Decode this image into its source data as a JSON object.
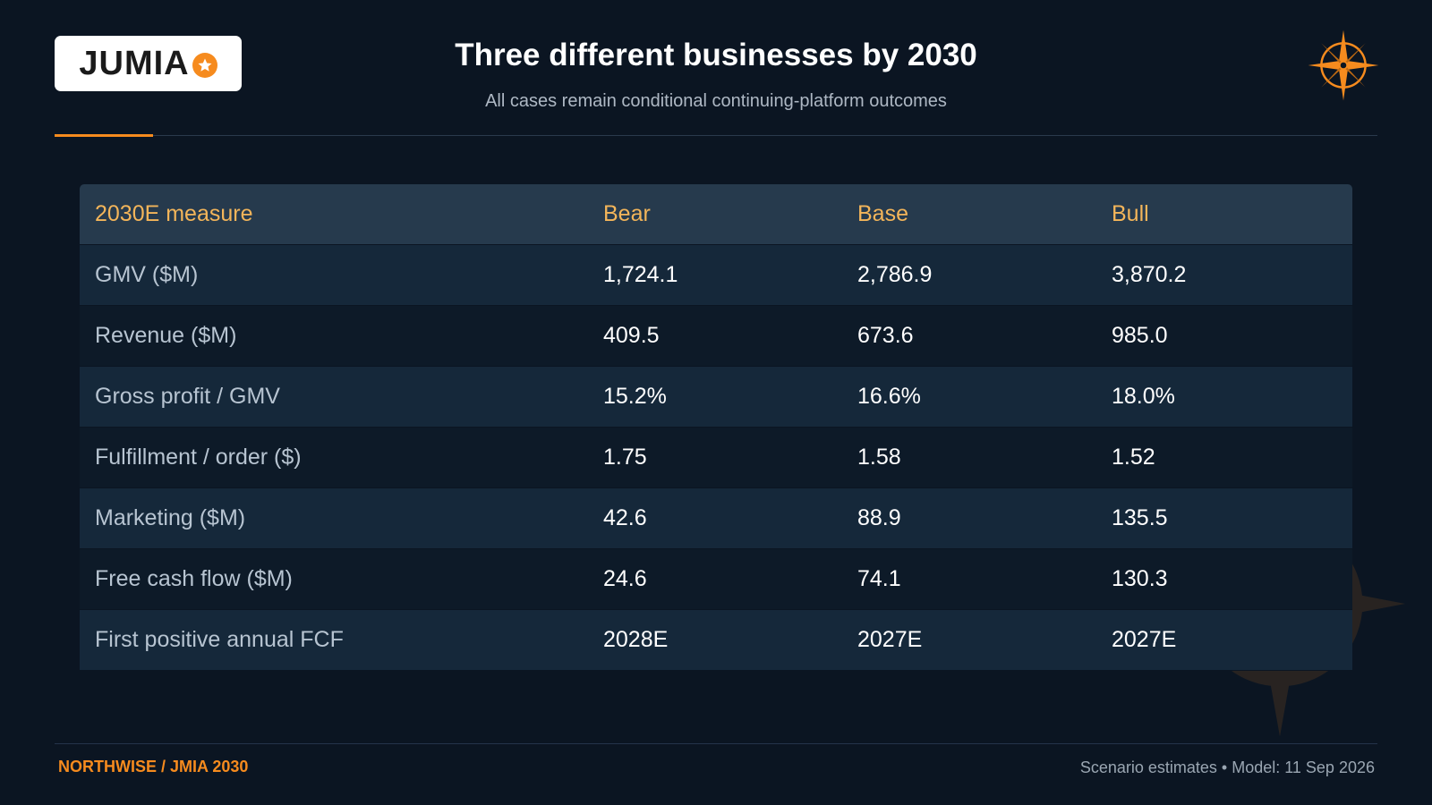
{
  "header": {
    "logo_text": "JUMIA",
    "title": "Three different businesses by 2030",
    "subtitle": "All cases remain conditional continuing-platform outcomes",
    "accent_color": "#f68b1e"
  },
  "table": {
    "headers": [
      "2030E measure",
      "Bear",
      "Base",
      "Bull"
    ],
    "rows": [
      {
        "measure": "GMV ($M)",
        "bear": "1,724.1",
        "base": "2,786.9",
        "bull": "3,870.2"
      },
      {
        "measure": "Revenue ($M)",
        "bear": "409.5",
        "base": "673.6",
        "bull": "985.0"
      },
      {
        "measure": "Gross profit / GMV",
        "bear": "15.2%",
        "base": "16.6%",
        "bull": "18.0%"
      },
      {
        "measure": "Fulfillment / order ($)",
        "bear": "1.75",
        "base": "1.58",
        "bull": "1.52"
      },
      {
        "measure": "Marketing ($M)",
        "bear": "42.6",
        "base": "88.9",
        "bull": "135.5"
      },
      {
        "measure": "Free cash flow ($M)",
        "bear": "24.6",
        "base": "74.1",
        "bull": "130.3"
      },
      {
        "measure": "First positive annual FCF",
        "bear": "2028E",
        "base": "2027E",
        "bull": "2027E"
      }
    ]
  },
  "footer": {
    "left": "NORTHWISE / JMIA 2030",
    "right": "Scenario estimates • Model: 11 Sep 2026"
  }
}
